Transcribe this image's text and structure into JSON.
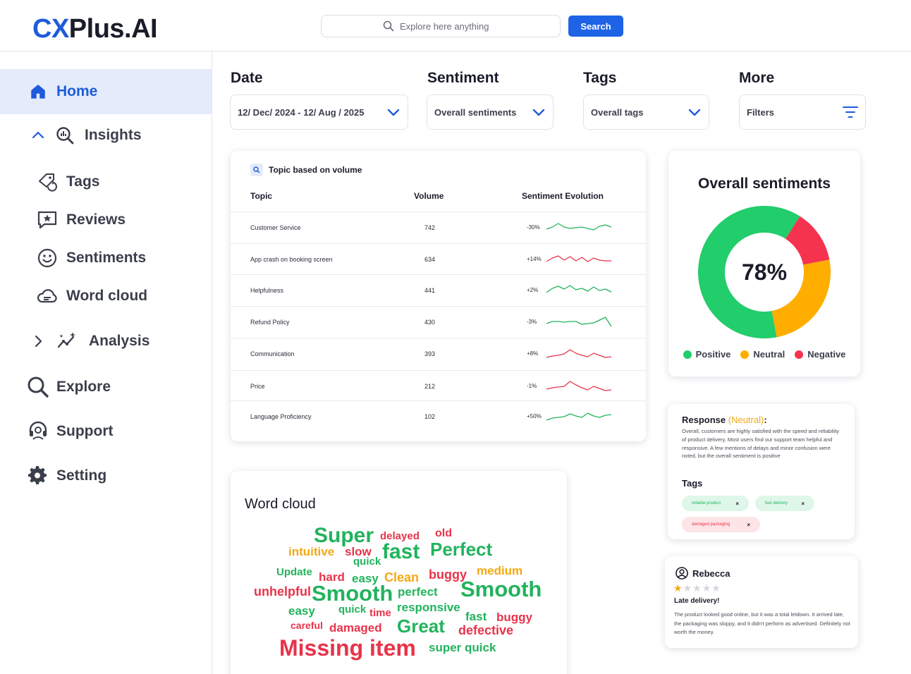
{
  "app": {
    "logo_cx": "CX",
    "logo_rest": "Plus.AI"
  },
  "search": {
    "placeholder": "Explore here anything",
    "button": "Search"
  },
  "sidebar": {
    "items": [
      {
        "label": "Home",
        "icon": "home-icon"
      },
      {
        "label": "Insights",
        "icon": "insights-icon"
      },
      {
        "label": "Tags",
        "icon": "tag-icon"
      },
      {
        "label": "Reviews",
        "icon": "reviews-icon"
      },
      {
        "label": "Sentiments",
        "icon": "smiley-icon"
      },
      {
        "label": "Word cloud",
        "icon": "cloud-icon"
      },
      {
        "label": "Analysis",
        "icon": "analysis-icon"
      },
      {
        "label": "Explore",
        "icon": "search-icon"
      },
      {
        "label": "Support",
        "icon": "headset-icon"
      },
      {
        "label": "Setting",
        "icon": "gear-icon"
      }
    ]
  },
  "filters": {
    "date": {
      "title": "Date",
      "value": "12/ Dec/ 2024 - 12/ Aug / 2025"
    },
    "sentiment": {
      "title": "Sentiment",
      "value": "Overall sentiments"
    },
    "tags": {
      "title": "Tags",
      "value": "Overall tags"
    },
    "more": {
      "title": "More",
      "value": "Filters"
    }
  },
  "topics": {
    "title": "Topic based on volume",
    "headers": {
      "topic": "Topic",
      "volume": "Volume",
      "evolution": "Sentiment Evolution"
    },
    "rows": [
      {
        "topic": "Customer Service",
        "volume": "742",
        "change": "-30%",
        "trend": "green",
        "spark": [
          12,
          9,
          4,
          9,
          11,
          10,
          9,
          11,
          13,
          8,
          6,
          9
        ]
      },
      {
        "topic": "App crash on booking screen",
        "volume": "634",
        "change": "+14%",
        "trend": "red",
        "spark": [
          13,
          8,
          5,
          11,
          6,
          12,
          7,
          13,
          8,
          11,
          12,
          12
        ]
      },
      {
        "topic": "Helpfulness",
        "volume": "441",
        "change": "+2%",
        "trend": "green",
        "spark": [
          13,
          7,
          4,
          8,
          3,
          9,
          7,
          11,
          5,
          10,
          8,
          12
        ]
      },
      {
        "topic": "Refund Policy",
        "volume": "430",
        "change": "-3%",
        "trend": "green",
        "spark": [
          12,
          9,
          9,
          10,
          9,
          9,
          13,
          12,
          11,
          7,
          3,
          16
        ]
      },
      {
        "topic": "Communication",
        "volume": "393",
        "change": "+8%",
        "trend": "red",
        "spark": [
          15,
          13,
          12,
          10,
          4,
          9,
          12,
          14,
          9,
          12,
          15,
          14
        ]
      },
      {
        "topic": "Price",
        "volume": "212",
        "change": "-1%",
        "trend": "red",
        "spark": [
          14,
          12,
          11,
          10,
          3,
          8,
          12,
          15,
          10,
          13,
          16,
          15
        ]
      },
      {
        "topic": "Language Proficiency",
        "volume": "102",
        "change": "+50%",
        "trend": "green",
        "spark": [
          15,
          12,
          11,
          10,
          6,
          9,
          11,
          5,
          9,
          11,
          8,
          7
        ]
      }
    ]
  },
  "sentiment_card": {
    "title": "Overall sentiments",
    "center": "78%",
    "legend": [
      "Positive",
      "Neutral",
      "Negative"
    ]
  },
  "chart_data": {
    "type": "pie",
    "title": "Overall sentiments",
    "labels": [
      "Positive",
      "Neutral",
      "Negative"
    ],
    "values": [
      62,
      25,
      13
    ],
    "colors": [
      "#22cd6b",
      "#ffae00",
      "#f5334f"
    ]
  },
  "wordcloud": {
    "title": "Word cloud",
    "words": [
      {
        "text": "Super",
        "color": "green"
      },
      {
        "text": "delayed",
        "color": "red"
      },
      {
        "text": "old",
        "color": "red"
      },
      {
        "text": "intuitive",
        "color": "orange"
      },
      {
        "text": "slow",
        "color": "red"
      },
      {
        "text": "fast",
        "color": "green"
      },
      {
        "text": "Perfect",
        "color": "green"
      },
      {
        "text": "quick",
        "color": "green"
      },
      {
        "text": "Update",
        "color": "green"
      },
      {
        "text": "hard",
        "color": "red"
      },
      {
        "text": "easy",
        "color": "green"
      },
      {
        "text": "Clean",
        "color": "orange"
      },
      {
        "text": "buggy",
        "color": "red"
      },
      {
        "text": "medium",
        "color": "orange"
      },
      {
        "text": "unhelpful",
        "color": "red"
      },
      {
        "text": "Smooth",
        "color": "green"
      },
      {
        "text": "perfect",
        "color": "green"
      },
      {
        "text": "Smooth",
        "color": "green"
      },
      {
        "text": "easy",
        "color": "green"
      },
      {
        "text": "quick",
        "color": "green"
      },
      {
        "text": "time",
        "color": "red"
      },
      {
        "text": "responsive",
        "color": "green"
      },
      {
        "text": "fast",
        "color": "green"
      },
      {
        "text": "buggy",
        "color": "red"
      },
      {
        "text": "careful",
        "color": "red"
      },
      {
        "text": "damaged",
        "color": "red"
      },
      {
        "text": "Great",
        "color": "green"
      },
      {
        "text": "defective",
        "color": "red"
      },
      {
        "text": "Missing item",
        "color": "red"
      },
      {
        "text": "super quick",
        "color": "green"
      }
    ]
  },
  "response": {
    "label": "Response ",
    "sentiment": "(Neutral)",
    "colon": ":",
    "text": "Overall, customers are highly satisfied with the speed and reliability of product delivery. Most users find our support team helpful and responsive. A few mentions of delays and minor confusion were noted, but the overall sentiment is positive",
    "tags_title": "Tags",
    "tags": [
      "reliable product",
      "fast delivery",
      "damaged packaging"
    ]
  },
  "review": {
    "name": "Rebecca",
    "rating": 1,
    "rating_max": 5,
    "title": "Late delivery!",
    "text": "The product looked good online, but it was a total letdown. It arrived late, the packaging was sloppy, and it didn't perform as advertised. Definitely not worth the money."
  },
  "colors": {
    "accent": "#1e5bdc",
    "positive": "#22cd6b",
    "neutral": "#ffae00",
    "negative": "#f5334f"
  }
}
